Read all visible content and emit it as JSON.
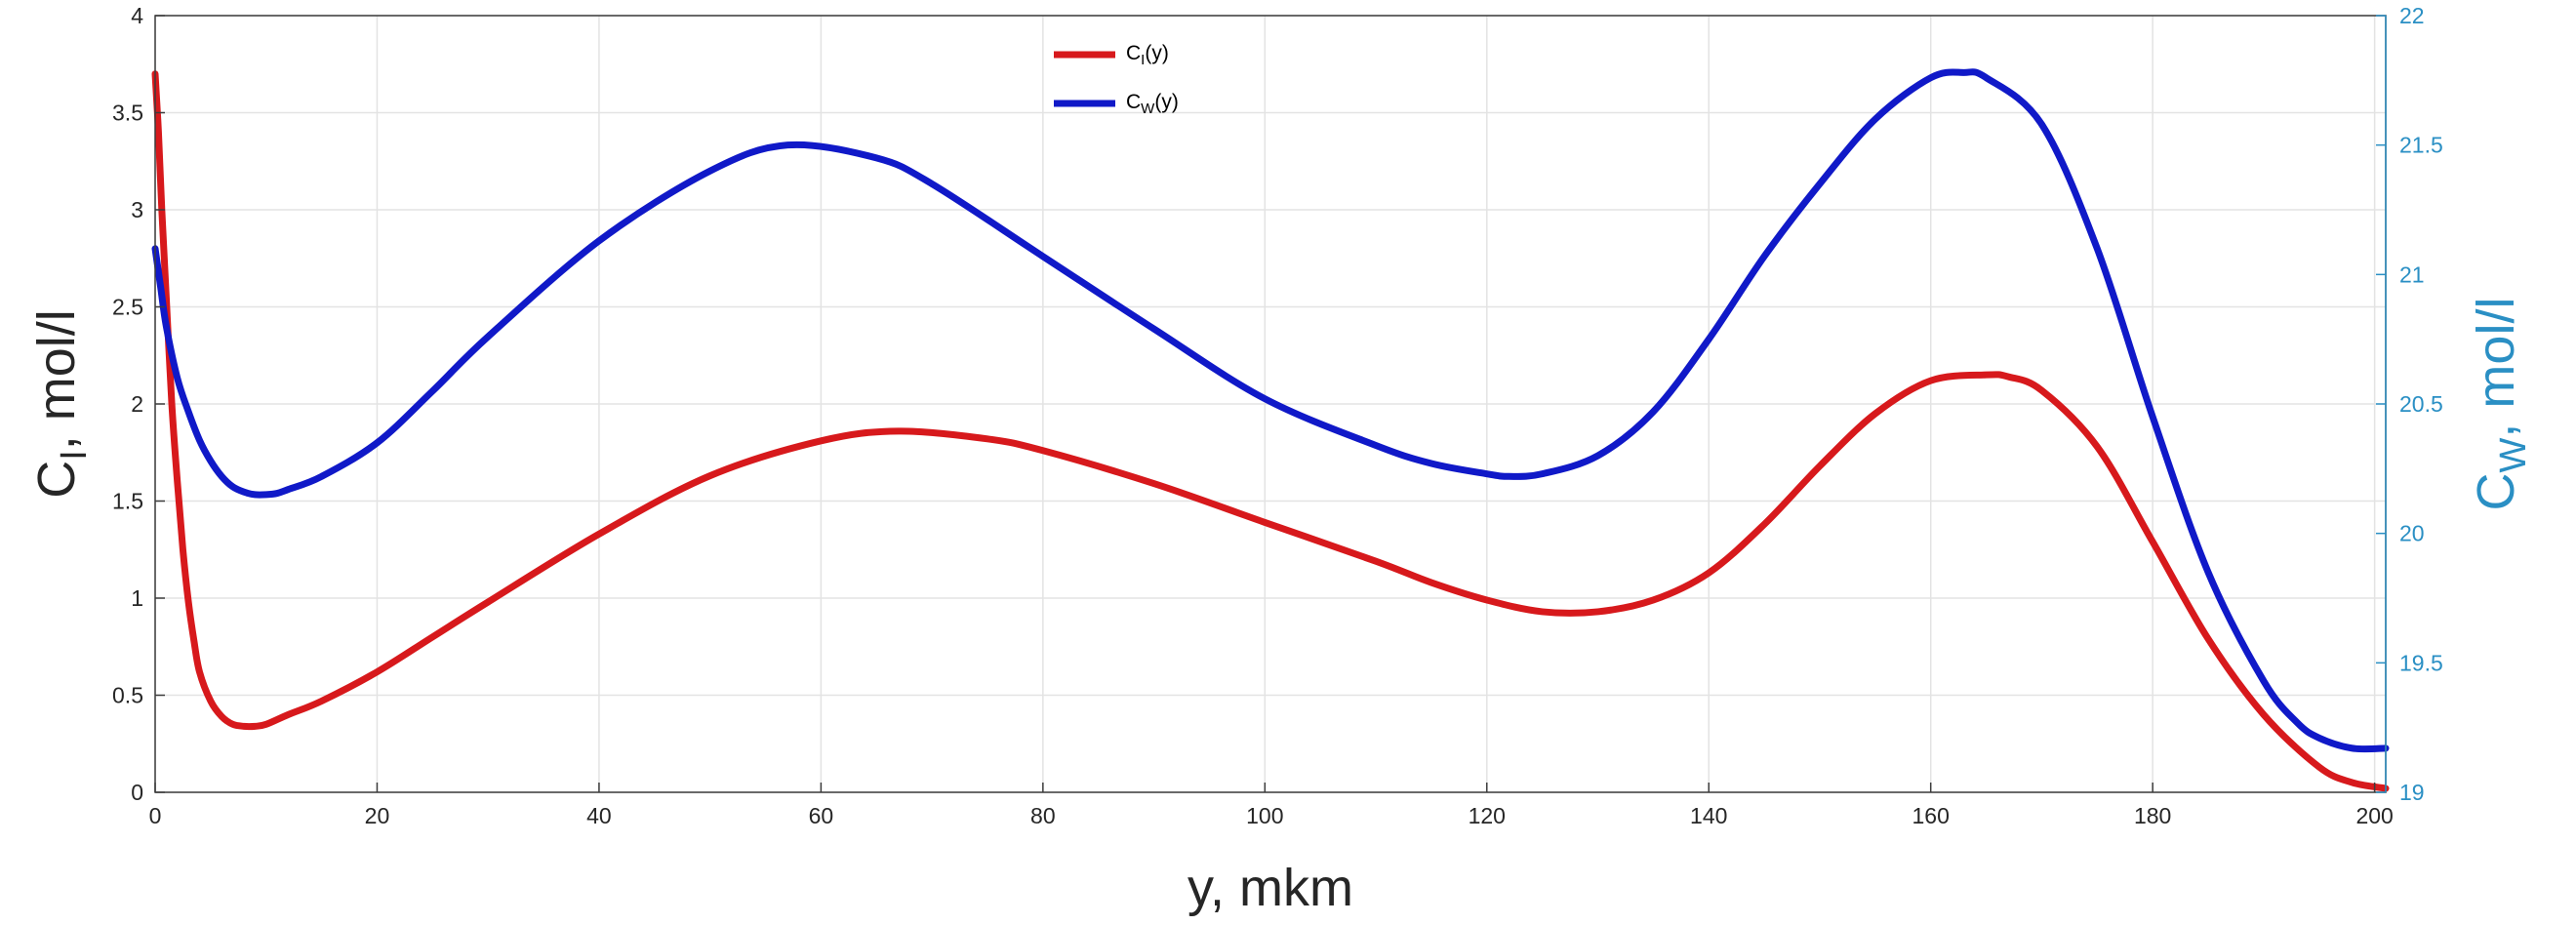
{
  "chart_data": {
    "type": "line",
    "xlabel": "y, mkm",
    "ylabel": {
      "main": "C",
      "sub": "I",
      "rest": ", mol/l"
    },
    "y2label": {
      "main": "C",
      "sub": "W",
      "rest": ", mol/l"
    },
    "xlim": [
      0,
      201
    ],
    "ylim": [
      0,
      4
    ],
    "y2lim": [
      19,
      22
    ],
    "xticks": [
      "0",
      "20",
      "40",
      "60",
      "80",
      "100",
      "120",
      "140",
      "160",
      "180",
      "200"
    ],
    "yticks": [
      "0",
      "0.5",
      "1",
      "1.5",
      "2",
      "2.5",
      "3",
      "3.5",
      "4"
    ],
    "y2ticks": [
      "19",
      "19.5",
      "20",
      "20.5",
      "21",
      "21.5",
      "22"
    ],
    "grid": true,
    "legend_position": "top-center",
    "series": [
      {
        "name": {
          "main": "C",
          "sub": "I",
          "rest": "(y)"
        },
        "axis": "left",
        "color": "#d7191c",
        "x": [
          0,
          0.3,
          0.6,
          1,
          1.5,
          2,
          2.5,
          3,
          3.5,
          4,
          5,
          6,
          7,
          8,
          9,
          10,
          12,
          15,
          20,
          25,
          30,
          40,
          50,
          60,
          67,
          75,
          80,
          90,
          100,
          110,
          115,
          120,
          125,
          130,
          135,
          140,
          145,
          150,
          155,
          160,
          165,
          167,
          170,
          175,
          180,
          185,
          190,
          195,
          198,
          201
        ],
        "y": [
          3.7,
          3.4,
          3.0,
          2.55,
          2.0,
          1.6,
          1.25,
          0.98,
          0.78,
          0.62,
          0.47,
          0.39,
          0.35,
          0.34,
          0.34,
          0.35,
          0.4,
          0.47,
          0.62,
          0.8,
          0.98,
          1.33,
          1.63,
          1.81,
          1.86,
          1.82,
          1.76,
          1.59,
          1.39,
          1.19,
          1.08,
          0.99,
          0.93,
          0.93,
          0.99,
          1.13,
          1.38,
          1.68,
          1.95,
          2.12,
          2.15,
          2.14,
          2.07,
          1.78,
          1.29,
          0.79,
          0.4,
          0.13,
          0.05,
          0.02
        ]
      },
      {
        "name": {
          "main": "C",
          "sub": "W",
          "rest": "(y)"
        },
        "axis": "right",
        "color": "#1019c8",
        "x": [
          0,
          0.5,
          1,
          2,
          3,
          4,
          5,
          6,
          7,
          8,
          9,
          10,
          11,
          12,
          15,
          20,
          25,
          30,
          40,
          50,
          57,
          65,
          70,
          80,
          90,
          100,
          110,
          115,
          120,
          122,
          125,
          130,
          135,
          140,
          145,
          150,
          155,
          160,
          163,
          165,
          170,
          175,
          180,
          185,
          190,
          193,
          195,
          198,
          201
        ],
        "y": [
          21.1,
          20.95,
          20.8,
          20.6,
          20.47,
          20.36,
          20.28,
          20.22,
          20.18,
          20.16,
          20.15,
          20.15,
          20.155,
          20.17,
          20.22,
          20.35,
          20.55,
          20.76,
          21.13,
          21.4,
          21.5,
          21.45,
          21.35,
          21.07,
          20.79,
          20.52,
          20.34,
          20.27,
          20.23,
          20.22,
          20.23,
          20.3,
          20.47,
          20.75,
          21.07,
          21.35,
          21.6,
          21.76,
          21.78,
          21.76,
          21.58,
          21.1,
          20.45,
          19.85,
          19.43,
          19.27,
          19.21,
          19.17,
          19.17
        ]
      }
    ]
  }
}
